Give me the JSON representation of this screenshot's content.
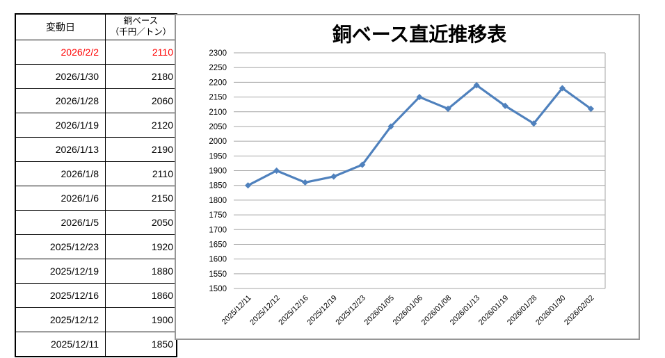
{
  "table": {
    "header": {
      "date": "変動日",
      "value_line1": "銅ベース",
      "value_line2": "（千円／トン）"
    },
    "rows": [
      {
        "date": "2026/2/2",
        "value": "2110",
        "highlight": true
      },
      {
        "date": "2026/1/30",
        "value": "2180",
        "highlight": false
      },
      {
        "date": "2026/1/28",
        "value": "2060",
        "highlight": false
      },
      {
        "date": "2026/1/19",
        "value": "2120",
        "highlight": false
      },
      {
        "date": "2026/1/13",
        "value": "2190",
        "highlight": false
      },
      {
        "date": "2026/1/8",
        "value": "2110",
        "highlight": false
      },
      {
        "date": "2026/1/6",
        "value": "2150",
        "highlight": false
      },
      {
        "date": "2026/1/5",
        "value": "2050",
        "highlight": false
      },
      {
        "date": "2025/12/23",
        "value": "1920",
        "highlight": false
      },
      {
        "date": "2025/12/19",
        "value": "1880",
        "highlight": false
      },
      {
        "date": "2025/12/16",
        "value": "1860",
        "highlight": false
      },
      {
        "date": "2025/12/12",
        "value": "1900",
        "highlight": false
      },
      {
        "date": "2025/12/11",
        "value": "1850",
        "highlight": false
      }
    ],
    "highlight_color": "#ff0000"
  },
  "chart_data": {
    "type": "line",
    "title": "銅ベース直近推移表",
    "x": [
      "2025/12/11",
      "2025/12/12",
      "2025/12/16",
      "2025/12/19",
      "2025/12/23",
      "2026/01/05",
      "2026/01/06",
      "2026/01/08",
      "2026/01/13",
      "2026/01/19",
      "2026/01/28",
      "2026/01/30",
      "2026/02/02"
    ],
    "series": [
      {
        "name": "銅ベース（千円／トン）",
        "values": [
          1850,
          1900,
          1860,
          1880,
          1920,
          2050,
          2150,
          2110,
          2190,
          2120,
          2060,
          2180,
          2110
        ]
      }
    ],
    "xlabel": "",
    "ylabel": "",
    "ylim": [
      1500,
      2300
    ],
    "ytick_step": 50,
    "grid": true,
    "legend_position": "none",
    "line_color": "#4F81BD",
    "marker": "diamond",
    "gridline_color": "#A6A6A6",
    "axis_color": "#A6A6A6",
    "chart_border_color": "#969696"
  }
}
